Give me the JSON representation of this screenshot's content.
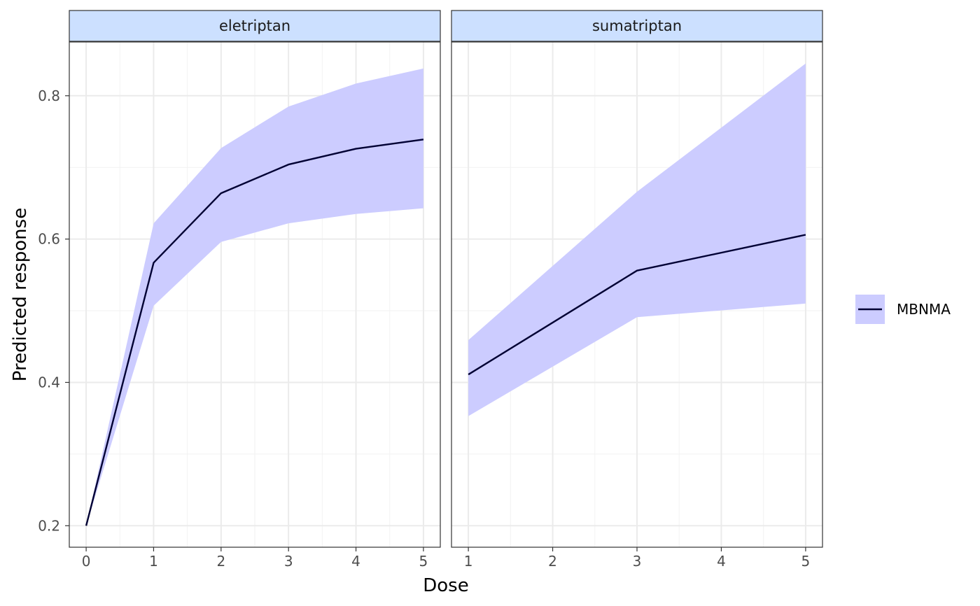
{
  "chart_data": {
    "type": "line",
    "xlabel": "Dose",
    "ylabel": "Predicted response",
    "ylim": [
      0.17,
      0.875
    ],
    "y_ticks": [
      0.2,
      0.4,
      0.6,
      0.8
    ],
    "y_tick_labels": [
      "0.2",
      "0.4",
      "0.6",
      "0.8"
    ],
    "y_minor_ticks": [
      0.3,
      0.5,
      0.7
    ],
    "grid": true,
    "legend": {
      "placement": "right",
      "entries": [
        {
          "label": "MBNMA",
          "line_color": "#000033",
          "fill_color": "#ccccff"
        }
      ]
    },
    "panels": [
      {
        "strip": "eletriptan",
        "xlim": [
          -0.25,
          5.25
        ],
        "x_ticks": [
          0,
          1,
          2,
          3,
          4,
          5
        ],
        "x_tick_labels": [
          "0",
          "1",
          "2",
          "3",
          "4",
          "5"
        ],
        "x_minor_ticks": [
          0.5,
          1.5,
          2.5,
          3.5,
          4.5
        ],
        "series": [
          {
            "name": "MBNMA",
            "x": [
              0,
              1,
              2,
              3,
              4,
              5
            ],
            "y": [
              0.2,
              0.567,
              0.664,
              0.704,
              0.726,
              0.739
            ],
            "lower": [
              0.2,
              0.507,
              0.596,
              0.622,
              0.635,
              0.643
            ],
            "upper": [
              0.2,
              0.622,
              0.727,
              0.785,
              0.817,
              0.838
            ]
          }
        ]
      },
      {
        "strip": "sumatriptan",
        "xlim": [
          0.8,
          5.2
        ],
        "x_ticks": [
          1,
          2,
          3,
          4,
          5
        ],
        "x_tick_labels": [
          "1",
          "2",
          "3",
          "4",
          "5"
        ],
        "x_minor_ticks": [
          1.5,
          2.5,
          3.5,
          4.5
        ],
        "series": [
          {
            "name": "MBNMA",
            "x": [
              1,
              3,
              5
            ],
            "y": [
              0.411,
              0.556,
              0.606
            ],
            "lower": [
              0.353,
              0.491,
              0.51
            ],
            "upper": [
              0.459,
              0.666,
              0.845
            ]
          }
        ]
      }
    ]
  }
}
